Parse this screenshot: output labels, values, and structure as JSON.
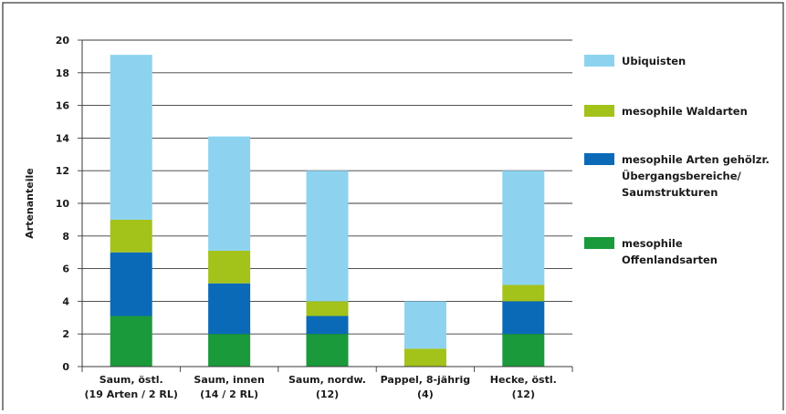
{
  "chart_data": {
    "type": "bar",
    "stacked": true,
    "ylabel": "Artenanteile",
    "xlabel": "",
    "ylim": [
      0,
      20
    ],
    "yticks": [
      0,
      2,
      4,
      6,
      8,
      10,
      12,
      14,
      16,
      18,
      20
    ],
    "grid": true,
    "legend_position": "right",
    "categories": [
      [
        "Saum, östl.",
        "(19 Arten / 2 RL)"
      ],
      [
        "Saum, innen",
        "(14 / 2 RL)"
      ],
      [
        "Saum, nordw.",
        "(12)"
      ],
      [
        "Pappel, 8-jährig",
        "(4)"
      ],
      [
        "Hecke, östl.",
        "(12)"
      ]
    ],
    "series": [
      {
        "name": [
          "mesophile",
          "Offenlandsarten"
        ],
        "color": "#1a9a3a",
        "values": [
          3.1,
          2,
          2,
          0,
          2
        ]
      },
      {
        "name": [
          "mesophile Arten gehölzr.",
          "Übergangsbereiche/",
          "Saumstrukturen"
        ],
        "color": "#0a6ab8",
        "values": [
          3.9,
          3.1,
          1.1,
          0,
          2
        ]
      },
      {
        "name": [
          "mesophile Waldarten"
        ],
        "color": "#a3c21a",
        "values": [
          2,
          2,
          0.9,
          1.1,
          1
        ]
      },
      {
        "name": [
          "Ubiquisten"
        ],
        "color": "#8dd3f0",
        "values": [
          10.1,
          7,
          8,
          2.9,
          7
        ]
      }
    ],
    "legend_order": [
      3,
      2,
      1,
      0
    ]
  }
}
